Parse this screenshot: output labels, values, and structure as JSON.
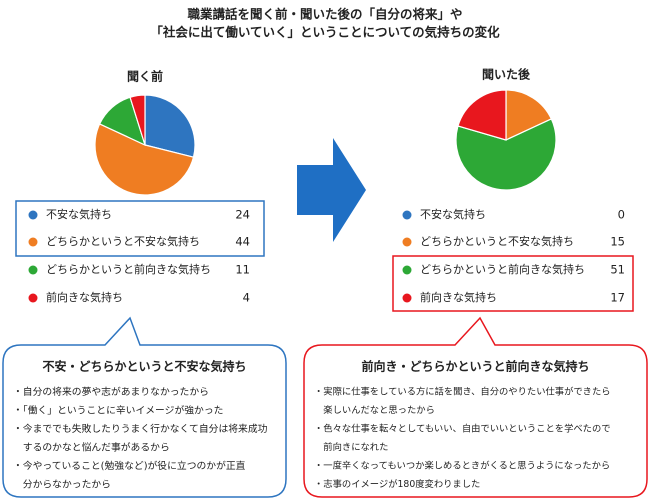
{
  "title": [
    "職業講話を聞く前・聞いた後の「自分の将来」や",
    "「社会に出て働いていく」ということについての気持ちの変化"
  ],
  "chart_data": [
    {
      "type": "pie",
      "title": "聞く前",
      "categories": [
        "不安な気持ち",
        "どちらかというと不安な気持ち",
        "どちらかというと前向きな気持ち",
        "前向きな気持ち"
      ],
      "values": [
        24,
        44,
        11,
        4
      ],
      "colors": [
        "#2e75c0",
        "#ef7d22",
        "#2da836",
        "#e8171e"
      ]
    },
    {
      "type": "pie",
      "title": "聞いた後",
      "categories": [
        "不安な気持ち",
        "どちらかというと不安な気持ち",
        "どちらかというと前向きな気持ち",
        "前向きな気持ち"
      ],
      "values": [
        0,
        15,
        51,
        17
      ],
      "colors": [
        "#2e75c0",
        "#ef7d22",
        "#2da836",
        "#e8171e"
      ]
    }
  ],
  "callouts": [
    {
      "title": "不安・どちらかというと不安な気持ち",
      "color": "#2e75c0",
      "lines": [
        "・自分の将来の夢や志があまりなかったから",
        "・「働く」ということに辛いイメージが強かった",
        "・今まででも失敗したりうまく行かなくて自分は将来成功",
        "　するのかなと悩んだ事があるから",
        "・今やっていること(勉強など)が役に立つのかが正直",
        "　分からなかったから"
      ]
    },
    {
      "title": "前向き・どちらかというと前向きな気持ち",
      "color": "#e8171e",
      "lines": [
        "・実際に仕事をしている方に話を聞き、自分のやりたい仕事ができたら",
        "　楽しいんだなと思ったから",
        "・色々な仕事を転々としてもいい、自由でいいということを学べたので",
        "　前向きになれた",
        "・一度辛くなってもいつか楽しめるときがくると思うようになったから",
        "・志事のイメージが180度変わりました"
      ]
    }
  ]
}
